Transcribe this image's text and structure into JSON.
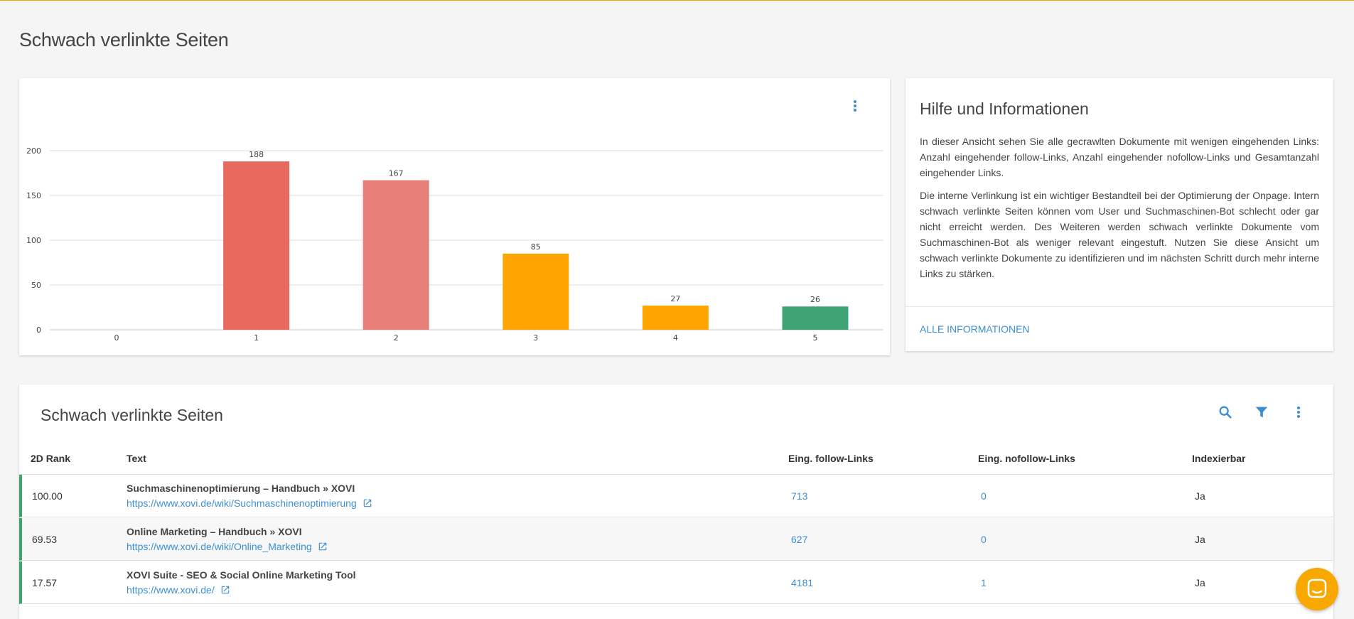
{
  "page": {
    "title": "Schwach verlinkte Seiten"
  },
  "chart_data": {
    "type": "bar",
    "categories": [
      "0",
      "1",
      "2",
      "3",
      "4",
      "5"
    ],
    "values": [
      0,
      188,
      167,
      85,
      27,
      26
    ],
    "bar_colors": [
      "#e8695e",
      "#e8695e",
      "#e8807a",
      "#ffa500",
      "#ffa500",
      "#3ea476"
    ],
    "y_ticks": [
      0,
      50,
      100,
      150,
      200
    ],
    "ylim": [
      0,
      200
    ],
    "grid": true
  },
  "info": {
    "title": "Hilfe und Informationen",
    "paragraph1": "In dieser Ansicht sehen Sie alle gecrawlten Dokumente mit wenigen eingehenden Links: Anzahl eingehender follow-Links, Anzahl eingehender nofollow-Links und Gesamtanzahl eingehender Links.",
    "paragraph2": "Die interne Verlinkung ist ein wichtiger Bestandteil bei der Optimierung der Onpage. Intern schwach verlinkte Seiten können vom User und Suchmaschinen-Bot schlecht oder gar nicht erreicht werden. Des Weiteren werden schwach verlinkte Dokumente vom Suchmaschinen-Bot als weniger relevant eingestuft. Nutzen Sie diese Ansicht um schwach verlinkte Dokumente zu identifizieren und im nächsten Schritt durch mehr interne Links zu stärken.",
    "link": "ALLE INFORMATIONEN"
  },
  "table": {
    "title": "Schwach verlinkte Seiten",
    "columns": {
      "rank": "2D Rank",
      "text": "Text",
      "follow": "Eing. follow-Links",
      "nofollow": "Eing. nofollow-Links",
      "index": "Indexierbar"
    },
    "rows": [
      {
        "rank": "100.00",
        "title": "Suchmaschinenoptimierung – Handbuch » XOVI",
        "url": "https://www.xovi.de/wiki/Suchmaschinenoptimierung",
        "follow": "713",
        "nofollow": "0",
        "index": "Ja"
      },
      {
        "rank": "69.53",
        "title": "Online Marketing – Handbuch » XOVI",
        "url": "https://www.xovi.de/wiki/Online_Marketing",
        "follow": "627",
        "nofollow": "0",
        "index": "Ja"
      },
      {
        "rank": "17.57",
        "title": "XOVI Suite - SEO & Social Online Marketing Tool",
        "url": "https://www.xovi.de/",
        "follow": "4181",
        "nofollow": "1",
        "index": "Ja"
      }
    ]
  },
  "icons": {
    "menu": "more-vert-icon",
    "search": "search-icon",
    "filter": "filter-icon",
    "external": "external-link-icon",
    "chat": "chat-icon"
  },
  "colors": {
    "accent": "#3d8fd1",
    "brand": "#f9a800",
    "row_marker": "#3ba66b"
  }
}
